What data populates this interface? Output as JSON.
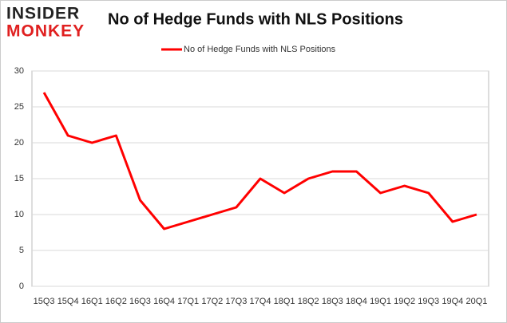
{
  "logo": {
    "line1": "INSIDER",
    "line2": "MONKEY"
  },
  "chart_data": {
    "type": "line",
    "title": "No of Hedge Funds with NLS Positions",
    "categories": [
      "15Q3",
      "15Q4",
      "16Q1",
      "16Q2",
      "16Q3",
      "16Q4",
      "17Q1",
      "17Q2",
      "17Q3",
      "17Q4",
      "18Q1",
      "18Q2",
      "18Q3",
      "18Q4",
      "19Q1",
      "19Q2",
      "19Q3",
      "19Q4",
      "20Q1"
    ],
    "series": [
      {
        "name": "No of Hedge Funds with NLS Positions",
        "color": "#ff0000",
        "values": [
          27,
          21,
          20,
          21,
          12,
          8,
          9,
          10,
          11,
          15,
          13,
          15,
          16,
          16,
          13,
          14,
          13,
          9,
          10
        ]
      }
    ],
    "ylim": [
      0,
      30
    ],
    "yticks": [
      0,
      5,
      10,
      15,
      20,
      25,
      30
    ],
    "grid": true,
    "legend": "top"
  }
}
